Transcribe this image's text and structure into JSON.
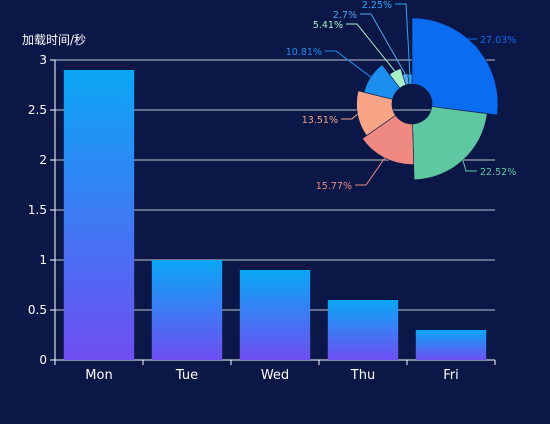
{
  "chart_data": [
    {
      "type": "bar",
      "ylabel": "加载时间/秒",
      "categories": [
        "Mon",
        "Tue",
        "Wed",
        "Thu",
        "Fri"
      ],
      "values": [
        2.9,
        1.0,
        0.9,
        0.6,
        0.3
      ],
      "ylim": [
        0,
        3
      ],
      "yticks": [
        "0",
        "0.5",
        "1",
        "1.5",
        "2",
        "2.5",
        "3"
      ],
      "grid": true,
      "colors": {
        "bar_top": "#0aa7f5",
        "bar_bottom": "#6f4ef2",
        "axis": "#ffffff",
        "text": "#ffffff"
      }
    },
    {
      "type": "pie",
      "variant": "rose",
      "slices": [
        {
          "label": "27.03%",
          "value": 27.03,
          "color": "#0a6cf0"
        },
        {
          "label": "22.52%",
          "value": 22.52,
          "color": "#5ec8a0"
        },
        {
          "label": "15.77%",
          "value": 15.77,
          "color": "#ef8a82"
        },
        {
          "label": "13.51%",
          "value": 13.51,
          "color": "#f7a487"
        },
        {
          "label": "10.81%",
          "value": 10.81,
          "color": "#1b8ef0"
        },
        {
          "label": "5.41%",
          "value": 5.41,
          "color": "#a8f0c8"
        },
        {
          "label": "2.7%",
          "value": 2.7,
          "color": "#53a4f2"
        },
        {
          "label": "2.25%",
          "value": 2.25,
          "color": "#2aa6f0"
        }
      ]
    }
  ]
}
